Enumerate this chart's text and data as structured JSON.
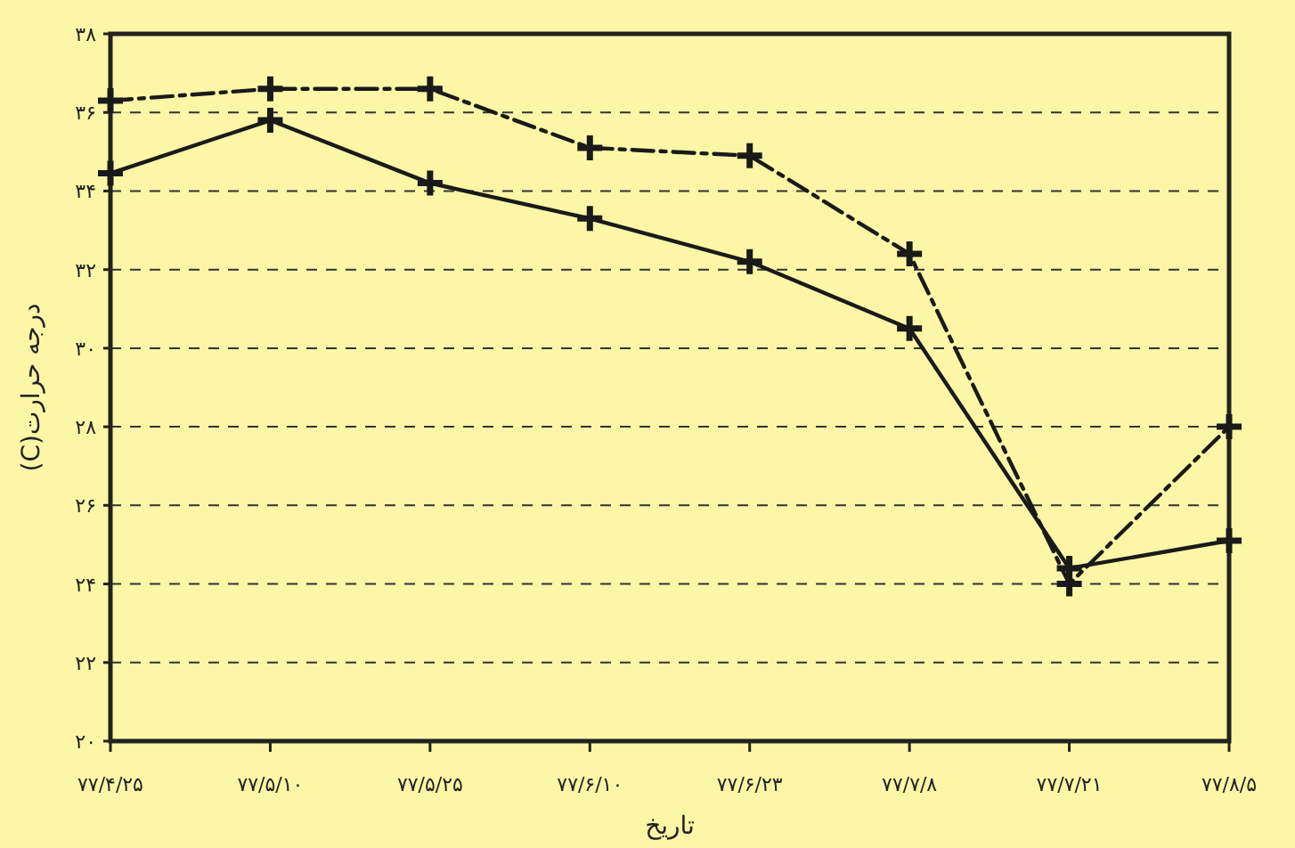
{
  "chart_data": {
    "type": "line",
    "xlabel": "تاریخ",
    "ylabel": "درجه حرارت(C)",
    "categories": [
      "۷۷/۴/۲۵",
      "۷۷/۵/۱۰",
      "۷۷/۵/۲۵",
      "۷۷/۶/۱۰",
      "۷۷/۶/۲۳",
      "۷۷/۷/۸",
      "۷۷/۷/۲۱",
      "۷۷/۸/۵"
    ],
    "series": [
      {
        "color": "#1a1a1a",
        "line_style": "dashed",
        "values": [
          36.3,
          36.6,
          36.6,
          35.1,
          34.9,
          32.4,
          24.0,
          28.0
        ]
      },
      {
        "color": "#1a1a1a",
        "line_style": "solid",
        "values": [
          34.45,
          35.8,
          34.2,
          33.3,
          32.2,
          30.5,
          24.4,
          25.1
        ]
      }
    ],
    "ylim": [
      20,
      38
    ],
    "yticks": [
      {
        "value": 20,
        "label": "۲۰"
      },
      {
        "value": 22,
        "label": "۲۲"
      },
      {
        "value": 24,
        "label": "۲۴"
      },
      {
        "value": 26,
        "label": "۲۶"
      },
      {
        "value": 28,
        "label": "۲۸"
      },
      {
        "value": 30,
        "label": "۳۰"
      },
      {
        "value": 32,
        "label": "۳۲"
      },
      {
        "value": 34,
        "label": "۳۴"
      },
      {
        "value": 36,
        "label": "۳۶"
      },
      {
        "value": 38,
        "label": "۳۸"
      }
    ],
    "grid": "y",
    "marker": "cross"
  }
}
